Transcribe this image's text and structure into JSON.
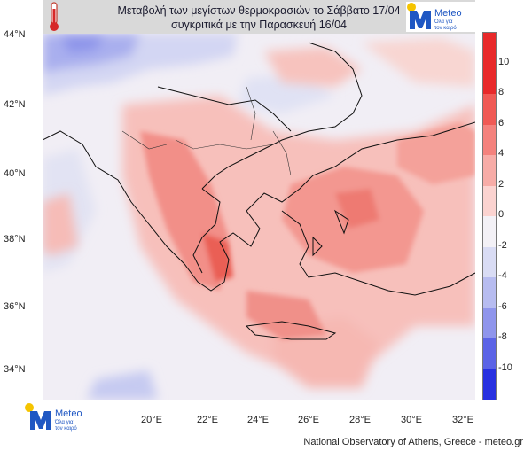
{
  "header": {
    "title_line1": "Μεταβολή των μεγίστων θερμοκρασιών το Σάββατο 17/04",
    "title_line2": "συγκριτικά με την Παρασκευή 16/04"
  },
  "brand": {
    "name": "Meteo",
    "tagline_line1": "Όλα για",
    "tagline_line2": "τον καιρό",
    "color": "#1f57c3",
    "sun_color": "#f5c400"
  },
  "axes": {
    "latitudes": [
      "44°N",
      "42°N",
      "40°N",
      "38°N",
      "36°N",
      "34°N"
    ],
    "longitudes": [
      "20°E",
      "22°E",
      "24°E",
      "26°E",
      "28°E",
      "30°E",
      "32°E"
    ]
  },
  "colorbar": {
    "labels": [
      "10",
      "8",
      "6",
      "4",
      "2",
      "0",
      "-2",
      "-4",
      "-6",
      "-8",
      "-10"
    ],
    "colors_top_to_bottom": [
      "#e8292a",
      "#f05a55",
      "#f4827d",
      "#f7aca7",
      "#fbd3d0",
      "#f3f1f6",
      "#d9dcf4",
      "#b7bcf0",
      "#8f95ec",
      "#5b63e6",
      "#2730e0"
    ]
  },
  "credit": "National Observatory of Athens, Greece - meteo.gr",
  "icons": [
    "thermometer-icon",
    "meteo-logo-icon"
  ]
}
